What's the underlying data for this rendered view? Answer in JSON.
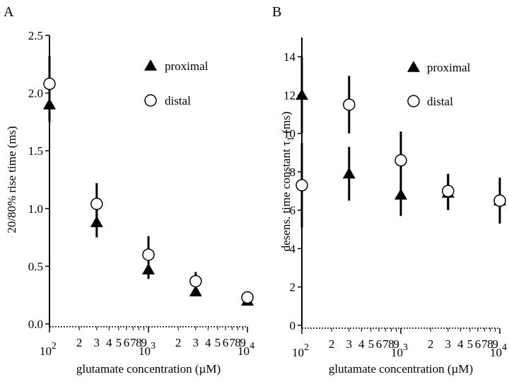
{
  "chart_data": [
    {
      "type": "scatter",
      "panel_label": "A",
      "xlabel": "glutamate concentration (µM)",
      "ylabel": "20/80% rise time (ms)",
      "xscale": "log",
      "xlim": [
        100,
        10000
      ],
      "ylim": [
        0,
        2.5
      ],
      "yticks": [
        "0.0",
        "0.5",
        "1.0",
        "1.5",
        "2.0",
        "2.5"
      ],
      "yticks_values": [
        0,
        0.5,
        1.0,
        1.5,
        2.0,
        2.5
      ],
      "xtick_decades": [
        {
          "base": "10",
          "exp": "2",
          "value": 100
        },
        {
          "base": "10",
          "exp": "3",
          "value": 1000
        },
        {
          "base": "10",
          "exp": "4",
          "value": 10000
        }
      ],
      "xtick_minor": [
        {
          "label": "2",
          "value": 200
        },
        {
          "label": "3",
          "value": 300
        },
        {
          "label": "4",
          "value": 400
        },
        {
          "label": "5",
          "value": 500
        },
        {
          "label": "6",
          "value": 600
        },
        {
          "label": "7",
          "value": 700
        },
        {
          "label": "8",
          "value": 800
        },
        {
          "label": "9",
          "value": 900
        },
        {
          "label": "2",
          "value": 2000
        },
        {
          "label": "3",
          "value": 3000
        },
        {
          "label": "4",
          "value": 4000
        },
        {
          "label": "5",
          "value": 5000
        },
        {
          "label": "6",
          "value": 6000
        },
        {
          "label": "7",
          "value": 7000
        },
        {
          "label": "8",
          "value": 8000
        },
        {
          "label": "9",
          "value": 9000
        }
      ],
      "legend_placement": "top-right",
      "series": [
        {
          "name": "proximal",
          "marker": "filled-triangle",
          "x": [
            100,
            300,
            1000,
            3000,
            10000
          ],
          "y": [
            1.9,
            0.88,
            0.47,
            0.28,
            0.2
          ],
          "err": [
            0.15,
            0.13,
            0.08,
            0.04,
            0.03
          ]
        },
        {
          "name": "distal",
          "marker": "open-circle",
          "x": [
            100,
            300,
            1000,
            3000,
            10000
          ],
          "y": [
            2.08,
            1.04,
            0.6,
            0.37,
            0.23
          ],
          "err": [
            0.24,
            0.18,
            0.16,
            0.08,
            0.03
          ]
        }
      ]
    },
    {
      "type": "scatter",
      "panel_label": "B",
      "xlabel": "glutamate concentration (µM)",
      "ylabel": "desens. time constant τ1 (ms)",
      "ylabel_parts": {
        "main": "desens. time constant τ",
        "sub": "1",
        "unit": " (ms)"
      },
      "xscale": "log",
      "xlim": [
        100,
        10000
      ],
      "ylim": [
        0,
        15
      ],
      "yticks": [
        "0",
        "2",
        "4",
        "6",
        "8",
        "10",
        "12",
        "14"
      ],
      "yticks_values": [
        0,
        2,
        4,
        6,
        8,
        10,
        12,
        14
      ],
      "xtick_decades": [
        {
          "base": "10",
          "exp": "2",
          "value": 100
        },
        {
          "base": "10",
          "exp": "3",
          "value": 1000
        },
        {
          "base": "10",
          "exp": "4",
          "value": 10000
        }
      ],
      "xtick_minor": [
        {
          "label": "2",
          "value": 200
        },
        {
          "label": "3",
          "value": 300
        },
        {
          "label": "4",
          "value": 400
        },
        {
          "label": "5",
          "value": 500
        },
        {
          "label": "6",
          "value": 600
        },
        {
          "label": "7",
          "value": 700
        },
        {
          "label": "8",
          "value": 800
        },
        {
          "label": "9",
          "value": 900
        },
        {
          "label": "2",
          "value": 2000
        },
        {
          "label": "3",
          "value": 3000
        },
        {
          "label": "4",
          "value": 4000
        },
        {
          "label": "5",
          "value": 5000
        },
        {
          "label": "6",
          "value": 6000
        },
        {
          "label": "7",
          "value": 7000
        },
        {
          "label": "8",
          "value": 8000
        },
        {
          "label": "9",
          "value": 9000
        }
      ],
      "legend_placement": "top-right",
      "series": [
        {
          "name": "proximal",
          "marker": "filled-triangle",
          "x": [
            100,
            300,
            1000,
            3000,
            10000
          ],
          "y": [
            12.0,
            7.9,
            6.8,
            6.9,
            6.5
          ],
          "err": [
            2.0,
            1.4,
            1.1,
            0.9,
            1.2
          ]
        },
        {
          "name": "distal",
          "marker": "open-circle",
          "x": [
            100,
            300,
            1000,
            3000,
            10000
          ],
          "y": [
            7.3,
            11.5,
            8.6,
            7.0,
            6.5
          ],
          "err": [
            2.2,
            1.5,
            1.5,
            0.9,
            0.4
          ]
        }
      ]
    }
  ]
}
